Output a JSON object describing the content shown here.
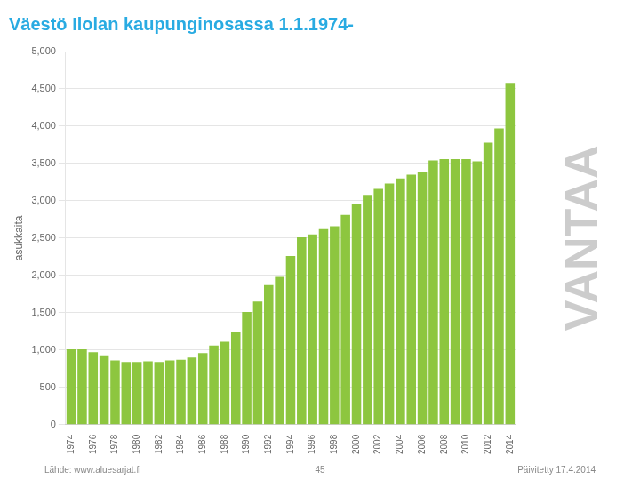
{
  "chart_data": {
    "type": "bar",
    "title": "Väestö Ilolan kaupunginosassa 1.1.1974-",
    "ylabel": "asukkaita",
    "annotations": [
      "Lähde: www.aluesarjat.fi",
      "45",
      "Päivitetty 17.4.2014",
      "VANTAA"
    ],
    "categories": [
      "1974",
      null,
      "1976",
      null,
      "1978",
      null,
      "1980",
      null,
      "1982",
      null,
      "1984",
      null,
      "1986",
      null,
      "1988",
      null,
      "1990",
      null,
      "1992",
      null,
      "1994",
      null,
      "1996",
      null,
      "1998",
      null,
      "2000",
      null,
      "2002",
      null,
      "2004",
      null,
      "2006",
      null,
      "2008",
      null,
      "2010",
      null,
      "2012",
      null,
      "2014"
    ],
    "values": [
      1010,
      1010,
      970,
      930,
      860,
      840,
      840,
      850,
      840,
      860,
      870,
      900,
      960,
      1060,
      1110,
      1240,
      1510,
      1650,
      1870,
      1980,
      2260,
      2510,
      2550,
      2620,
      2660,
      2810,
      2960,
      3080,
      3160,
      3230,
      3300,
      3350,
      3380,
      3540,
      3560,
      3560,
      3560,
      3530,
      3780,
      3970,
      4580
    ],
    "color": "#8dc63f",
    "ylim": [
      0,
      5000
    ],
    "yticks": [
      0,
      500,
      {
        "value": 1000,
        "label": "1,000"
      },
      {
        "value": 1500,
        "label": "1,500"
      },
      {
        "value": 2000,
        "label": "2,000"
      },
      {
        "value": 2500,
        "label": "2,500"
      },
      {
        "value": 3000,
        "label": "3,000"
      },
      {
        "value": 3500,
        "label": "3,500"
      },
      {
        "value": 4000,
        "label": "4,000"
      },
      {
        "value": 4500,
        "label": "4,500"
      },
      {
        "value": 5000,
        "label": "5,000"
      }
    ],
    "grid": true
  }
}
